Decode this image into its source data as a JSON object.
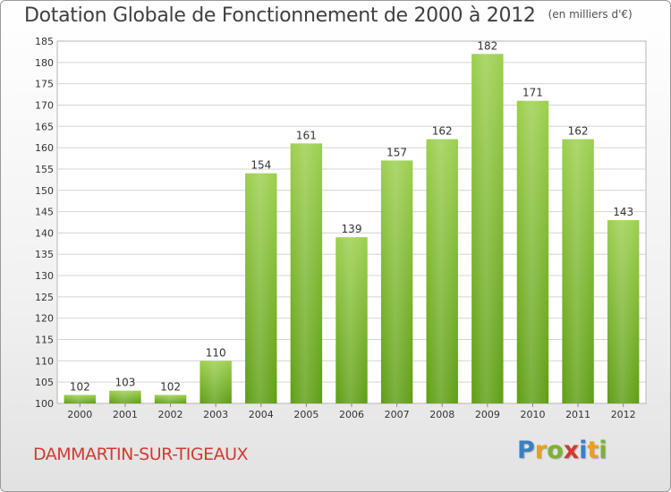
{
  "header": {
    "title": "Dotation Globale de Fonctionnement de 2000 à 2012",
    "unit_note": "(en milliers d'€)"
  },
  "footer": {
    "commune": "DAMMARTIN-SUR-TIGEAUX",
    "logo_letters": [
      "P",
      "r",
      "o",
      "x",
      "i",
      "t",
      "i"
    ],
    "logo_colors": [
      "#3a7fc4",
      "#e8a020",
      "#7cb233",
      "#d23a2f",
      "#3a7fc4",
      "#e8a020",
      "#7cb233"
    ]
  },
  "chart_data": {
    "type": "bar",
    "title": "Dotation Globale de Fonctionnement de 2000 à 2012",
    "subtitle": "(en milliers d'€)",
    "categories": [
      "2000",
      "2001",
      "2002",
      "2003",
      "2004",
      "2005",
      "2006",
      "2007",
      "2008",
      "2009",
      "2010",
      "2011",
      "2012"
    ],
    "values": [
      102,
      103,
      102,
      110,
      154,
      161,
      139,
      157,
      162,
      182,
      171,
      162,
      143
    ],
    "data_labels": [
      "102",
      "103",
      "102",
      "110",
      "154",
      "161",
      "139",
      "157",
      "162",
      "182",
      "171",
      "162",
      "143"
    ],
    "ylim": [
      100,
      185
    ],
    "yticks": [
      100,
      105,
      110,
      115,
      120,
      125,
      130,
      135,
      140,
      145,
      150,
      155,
      160,
      165,
      170,
      175,
      180,
      185
    ],
    "grid": true,
    "bar_color_top": "#9ccf4e",
    "bar_color_bottom": "#5f9e14"
  }
}
